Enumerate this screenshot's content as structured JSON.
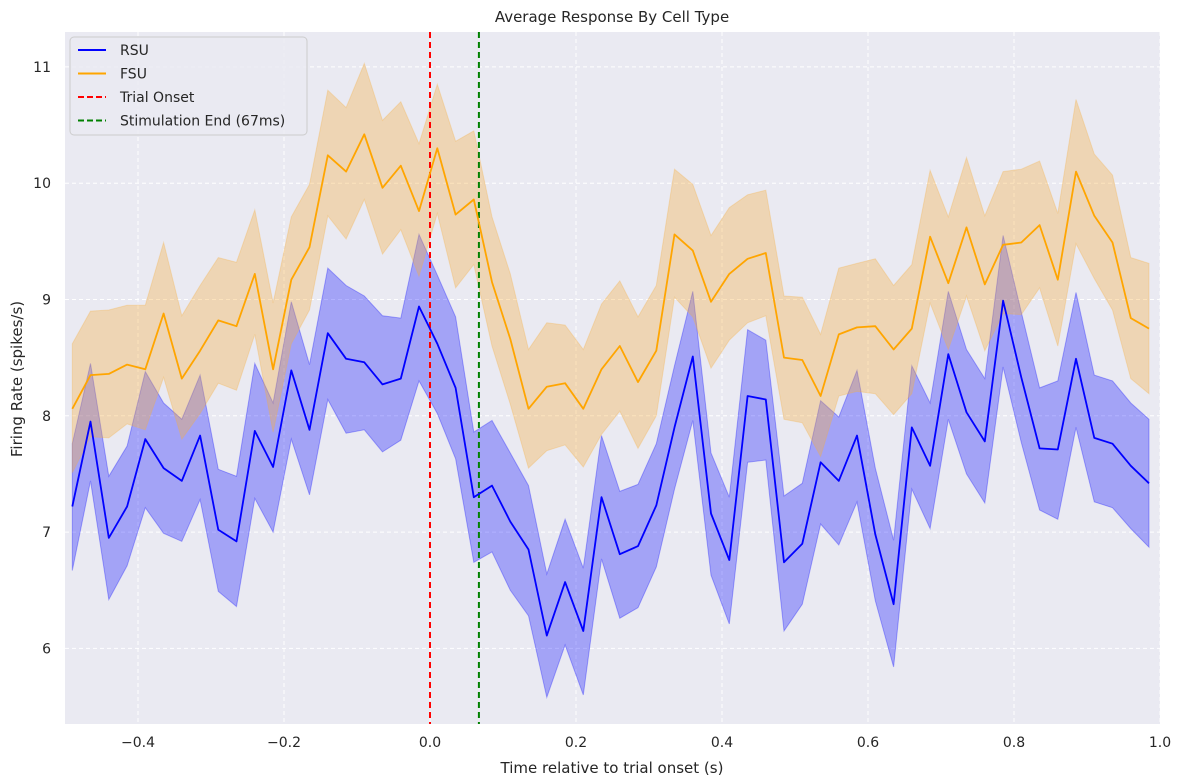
{
  "chart_data": {
    "type": "line",
    "title": "Average Response By Cell Type",
    "xlabel": "Time relative to trial onset (s)",
    "ylabel": "Firing Rate (spikes/s)",
    "xlim": [
      -0.5,
      1.0
    ],
    "ylim": [
      5.35,
      11.3
    ],
    "xticks": [
      -0.4,
      -0.2,
      0.0,
      0.2,
      0.4,
      0.6,
      0.8,
      1.0
    ],
    "xtick_labels": [
      "−0.4",
      "−0.2",
      "0.0",
      "0.2",
      "0.4",
      "0.6",
      "0.8",
      "1.0"
    ],
    "yticks": [
      6,
      7,
      8,
      9,
      10,
      11
    ],
    "ytick_labels": [
      "6",
      "7",
      "8",
      "9",
      "10",
      "11"
    ],
    "grid": true,
    "legend_position": "top-left",
    "x": [
      -0.49,
      -0.465,
      -0.44,
      -0.415,
      -0.39,
      -0.365,
      -0.34,
      -0.315,
      -0.29,
      -0.265,
      -0.24,
      -0.215,
      -0.19,
      -0.165,
      -0.14,
      -0.115,
      -0.09,
      -0.065,
      -0.04,
      -0.015,
      0.01,
      0.035,
      0.06,
      0.085,
      0.11,
      0.135,
      0.16,
      0.185,
      0.21,
      0.235,
      0.26,
      0.285,
      0.31,
      0.335,
      0.36,
      0.385,
      0.41,
      0.435,
      0.46,
      0.485,
      0.51,
      0.535,
      0.56,
      0.585,
      0.61,
      0.635,
      0.66,
      0.685,
      0.71,
      0.735,
      0.76,
      0.785,
      0.81,
      0.835,
      0.86,
      0.885,
      0.91,
      0.935,
      0.96,
      0.985
    ],
    "series": [
      {
        "name": "RSU",
        "color": "#0000ff",
        "band_color": "#0000ff",
        "values": [
          7.22,
          7.95,
          6.95,
          7.22,
          7.8,
          7.55,
          7.44,
          7.83,
          7.02,
          6.92,
          7.87,
          7.56,
          8.39,
          7.88,
          8.71,
          8.49,
          8.46,
          8.27,
          8.32,
          8.94,
          8.62,
          8.24,
          7.3,
          7.4,
          7.09,
          6.85,
          6.11,
          6.57,
          6.15,
          7.3,
          6.81,
          6.88,
          7.23,
          7.9,
          8.51,
          7.16,
          6.76,
          8.17,
          8.14,
          6.74,
          6.9,
          7.6,
          7.44,
          7.83,
          6.98,
          6.38,
          7.9,
          7.57,
          8.53,
          8.03,
          7.78,
          8.99,
          8.33,
          7.72,
          7.71,
          8.49,
          7.81,
          7.76,
          7.57,
          7.42
        ],
        "lower": [
          6.67,
          7.44,
          6.42,
          6.71,
          7.21,
          6.99,
          6.92,
          7.28,
          6.49,
          6.36,
          7.29,
          7.0,
          7.8,
          7.32,
          8.14,
          7.85,
          7.88,
          7.69,
          7.79,
          8.3,
          8.02,
          7.63,
          6.74,
          6.83,
          6.5,
          6.28,
          5.58,
          6.03,
          5.6,
          6.77,
          6.26,
          6.35,
          6.7,
          7.37,
          7.96,
          6.63,
          6.21,
          7.6,
          7.62,
          6.15,
          6.38,
          7.07,
          6.89,
          7.26,
          6.41,
          5.84,
          7.37,
          7.03,
          7.97,
          7.5,
          7.25,
          8.42,
          7.77,
          7.19,
          7.11,
          7.9,
          7.26,
          7.21,
          7.03,
          6.87
        ],
        "upper": [
          7.76,
          8.45,
          7.48,
          7.74,
          8.38,
          8.11,
          7.97,
          8.35,
          7.54,
          7.48,
          8.45,
          8.11,
          8.98,
          8.44,
          9.27,
          9.12,
          9.03,
          8.86,
          8.84,
          9.56,
          9.21,
          8.85,
          7.86,
          7.96,
          7.68,
          7.4,
          6.64,
          7.11,
          6.69,
          7.83,
          7.35,
          7.41,
          7.76,
          8.43,
          9.07,
          7.68,
          7.3,
          8.74,
          8.65,
          7.31,
          7.42,
          8.13,
          7.99,
          8.39,
          7.55,
          6.93,
          8.43,
          8.11,
          9.07,
          8.57,
          8.32,
          9.55,
          8.89,
          8.24,
          8.3,
          9.06,
          8.35,
          8.3,
          8.11,
          7.97
        ]
      },
      {
        "name": "FSU",
        "color": "#ffa500",
        "band_color": "#f5b041",
        "values": [
          8.06,
          8.35,
          8.36,
          8.44,
          8.4,
          8.88,
          8.32,
          8.56,
          8.82,
          8.77,
          9.22,
          8.4,
          9.17,
          9.45,
          10.24,
          10.1,
          10.42,
          9.96,
          10.15,
          9.76,
          10.3,
          9.73,
          9.86,
          9.15,
          8.66,
          8.06,
          8.25,
          8.28,
          8.06,
          8.4,
          8.6,
          8.29,
          8.56,
          9.56,
          9.42,
          8.98,
          9.22,
          9.35,
          9.4,
          8.5,
          8.48,
          8.17,
          8.7,
          8.76,
          8.77,
          8.57,
          8.75,
          9.54,
          9.14,
          9.62,
          9.13,
          9.47,
          9.49,
          9.64,
          9.17,
          10.1,
          9.72,
          9.49,
          8.84,
          8.75
        ],
        "lower": [
          7.51,
          7.82,
          7.81,
          7.93,
          7.88,
          8.33,
          7.8,
          8.02,
          8.28,
          8.22,
          8.7,
          7.86,
          8.62,
          8.91,
          9.72,
          9.52,
          9.86,
          9.39,
          9.6,
          9.2,
          9.74,
          9.1,
          9.3,
          8.6,
          8.1,
          7.55,
          7.7,
          7.75,
          7.56,
          7.84,
          8.04,
          7.72,
          8.0,
          9.02,
          8.85,
          8.41,
          8.65,
          8.8,
          8.86,
          7.97,
          7.94,
          7.65,
          8.17,
          8.21,
          8.19,
          8.01,
          8.19,
          8.97,
          8.57,
          9.03,
          8.56,
          8.88,
          8.87,
          9.1,
          8.6,
          9.48,
          9.18,
          8.91,
          8.32,
          8.19
        ],
        "upper": [
          8.62,
          8.9,
          8.91,
          8.95,
          8.95,
          9.49,
          8.86,
          9.12,
          9.36,
          9.32,
          9.77,
          8.97,
          9.71,
          9.99,
          10.8,
          10.65,
          11.03,
          10.54,
          10.7,
          10.34,
          10.85,
          10.36,
          10.45,
          9.71,
          9.22,
          8.57,
          8.8,
          8.78,
          8.57,
          8.96,
          9.16,
          8.85,
          9.12,
          10.12,
          9.99,
          9.55,
          9.79,
          9.9,
          9.94,
          9.03,
          9.02,
          8.7,
          9.27,
          9.31,
          9.35,
          9.12,
          9.3,
          10.11,
          9.71,
          10.22,
          9.72,
          10.1,
          10.12,
          10.19,
          9.74,
          10.72,
          10.25,
          10.07,
          9.36,
          9.31
        ]
      }
    ],
    "vlines": [
      {
        "name": "Trial Onset",
        "x": 0.0,
        "color": "#ff0000",
        "style": "dashed"
      },
      {
        "name": "Stimulation End (67ms)",
        "x": 0.067,
        "color": "#008000",
        "style": "dashed"
      }
    ],
    "background_color": "#eaeaf2",
    "grid_color": "#ffffff"
  }
}
